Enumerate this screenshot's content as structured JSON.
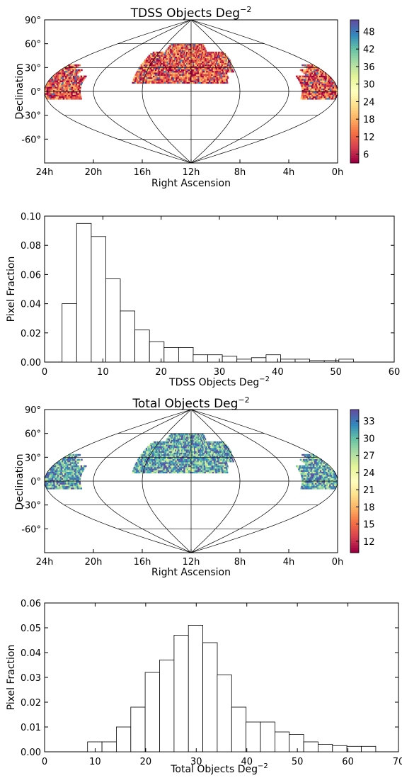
{
  "chart_data": [
    {
      "type": "heatmap",
      "projection": "sinusoidal",
      "title": "TDSS Objects Deg",
      "title_exponent": "−2",
      "xlabel": "Right Ascension",
      "ylabel": "Declination",
      "x_tick_labels": [
        "24h",
        "20h",
        "16h",
        "12h",
        "8h",
        "4h",
        "0h"
      ],
      "y_tick_labels": [
        "90°",
        "60°",
        "30°",
        "0°",
        "-30°",
        "-60°"
      ],
      "colorbar": {
        "ticks": [
          "48",
          "42",
          "36",
          "30",
          "24",
          "18",
          "12",
          "6"
        ],
        "range": [
          3,
          52
        ],
        "colormap": "Spectral"
      },
      "coverage": "North Galactic Cap RA ~8h–17h, Dec ~10°–60°; South Galactic Cap RA ~21h–3h, Dec ~-10°–35°",
      "typical_value": 10
    },
    {
      "type": "bar",
      "xlabel": "TDSS Objects Deg",
      "xlabel_exponent": "−2",
      "ylabel": "Pixel Fraction",
      "xlim": [
        0,
        60
      ],
      "ylim": [
        0,
        0.1
      ],
      "x_tick_labels": [
        "0",
        "10",
        "20",
        "30",
        "40",
        "50",
        "60"
      ],
      "y_tick_labels": [
        "0.00",
        "0.02",
        "0.04",
        "0.06",
        "0.08",
        "0.10"
      ],
      "bin_edges": [
        3.0,
        5.5,
        8.0,
        10.5,
        13.0,
        15.5,
        18.0,
        20.5,
        23.0,
        25.5,
        28.0,
        30.5,
        33.0,
        35.5,
        38.0,
        40.5,
        43.0,
        45.5,
        48.0,
        50.5,
        53.0
      ],
      "values": [
        0.04,
        0.095,
        0.086,
        0.057,
        0.035,
        0.022,
        0.014,
        0.01,
        0.01,
        0.005,
        0.005,
        0.004,
        0.002,
        0.003,
        0.005,
        0.002,
        0.002,
        0.001,
        0.001,
        0.002
      ]
    },
    {
      "type": "heatmap",
      "projection": "sinusoidal",
      "title": "Total Objects Deg",
      "title_exponent": "−2",
      "xlabel": "Right Ascension",
      "ylabel": "Declination",
      "x_tick_labels": [
        "24h",
        "20h",
        "16h",
        "12h",
        "8h",
        "4h",
        "0h"
      ],
      "y_tick_labels": [
        "90°",
        "60°",
        "30°",
        "0°",
        "-30°",
        "-60°"
      ],
      "colorbar": {
        "ticks": [
          "33",
          "30",
          "27",
          "24",
          "21",
          "18",
          "15",
          "12"
        ],
        "range": [
          10,
          35
        ],
        "colormap": "Spectral"
      },
      "coverage": "North Galactic Cap RA ~8h–17h, Dec ~10°–60°; South Galactic Cap RA ~21h–3h, Dec ~-10°–35°",
      "typical_value": 30
    },
    {
      "type": "bar",
      "xlabel": "Total Objects Deg",
      "xlabel_exponent": "−2",
      "ylabel": "Pixel Fraction",
      "xlim": [
        0,
        70
      ],
      "ylim": [
        0,
        0.06
      ],
      "x_tick_labels": [
        "0",
        "10",
        "20",
        "30",
        "40",
        "50",
        "60",
        "70"
      ],
      "y_tick_labels": [
        "0.00",
        "0.01",
        "0.02",
        "0.03",
        "0.04",
        "0.05",
        "0.06"
      ],
      "bin_edges": [
        8.5,
        11.35,
        14.2,
        17.05,
        19.9,
        22.75,
        25.6,
        28.45,
        31.3,
        34.15,
        37.0,
        39.85,
        42.7,
        45.55,
        48.4,
        51.25,
        54.1,
        56.95,
        59.8,
        62.65,
        65.5
      ],
      "values": [
        0.004,
        0.004,
        0.01,
        0.018,
        0.032,
        0.037,
        0.047,
        0.051,
        0.044,
        0.031,
        0.018,
        0.012,
        0.012,
        0.008,
        0.007,
        0.004,
        0.003,
        0.0025,
        0.0022,
        0.0022
      ]
    }
  ]
}
